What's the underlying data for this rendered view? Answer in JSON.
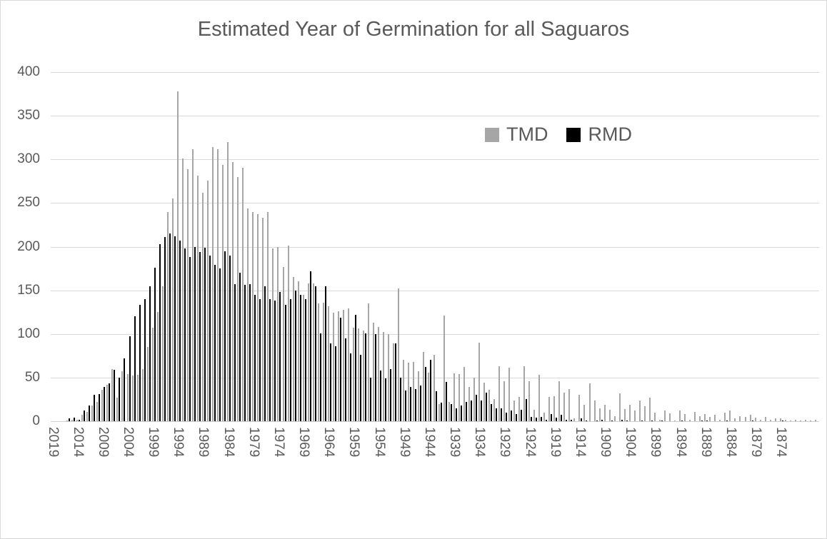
{
  "window": {
    "background": "#ffffff",
    "border_color": "#d9d9d9"
  },
  "chart_data": {
    "type": "bar",
    "title": "Estimated Year of Germination for all Saguaros",
    "title_color": "#595959",
    "axis_label_color": "#595959",
    "gridline_color": "#d9d9d9",
    "grid": "horizontal",
    "legend_position": "inside-top-right",
    "ylim": [
      0,
      400
    ],
    "yticks": [
      0,
      50,
      100,
      150,
      200,
      250,
      300,
      350,
      400
    ],
    "x_tick_interval": 5,
    "x_tick_labels": [
      "2019",
      "2014",
      "2009",
      "2004",
      "1999",
      "1994",
      "1989",
      "1984",
      "1979",
      "1974",
      "1969",
      "1964",
      "1959",
      "1954",
      "1949",
      "1944",
      "1939",
      "1934",
      "1929",
      "1924",
      "1919",
      "1914",
      "1909",
      "1904",
      "1899",
      "1894",
      "1889",
      "1884",
      "1879",
      "1874"
    ],
    "categories": [
      2019,
      2018,
      2017,
      2016,
      2015,
      2014,
      2013,
      2012,
      2011,
      2010,
      2009,
      2008,
      2007,
      2006,
      2005,
      2004,
      2003,
      2002,
      2001,
      2000,
      1999,
      1998,
      1997,
      1996,
      1995,
      1994,
      1993,
      1992,
      1991,
      1990,
      1989,
      1988,
      1987,
      1986,
      1985,
      1984,
      1983,
      1982,
      1981,
      1980,
      1979,
      1978,
      1977,
      1976,
      1975,
      1974,
      1973,
      1972,
      1971,
      1970,
      1969,
      1968,
      1967,
      1966,
      1965,
      1964,
      1963,
      1962,
      1961,
      1960,
      1959,
      1958,
      1957,
      1956,
      1955,
      1954,
      1953,
      1952,
      1951,
      1950,
      1949,
      1948,
      1947,
      1946,
      1945,
      1944,
      1943,
      1942,
      1941,
      1940,
      1939,
      1938,
      1937,
      1936,
      1935,
      1934,
      1933,
      1932,
      1931,
      1930,
      1929,
      1928,
      1927,
      1926,
      1925,
      1924,
      1923,
      1922,
      1921,
      1920,
      1919,
      1918,
      1917,
      1916,
      1915,
      1914,
      1913,
      1912,
      1911,
      1910,
      1909,
      1908,
      1907,
      1906,
      1905,
      1904,
      1903,
      1902,
      1901,
      1900,
      1899,
      1898,
      1897,
      1896,
      1895,
      1894,
      1893,
      1892,
      1891,
      1890,
      1889,
      1888,
      1887,
      1886,
      1885,
      1884,
      1883,
      1882,
      1881,
      1880,
      1879,
      1878,
      1877,
      1876,
      1875,
      1874,
      1873,
      1872,
      1871,
      1870,
      1869,
      1868,
      1867
    ],
    "series": [
      {
        "name": "TMD",
        "color": "#a6a6a6",
        "values": [
          0,
          0,
          0,
          1,
          2,
          2,
          7,
          11,
          18,
          22,
          36,
          42,
          60,
          27,
          57,
          54,
          52,
          53,
          60,
          85,
          107,
          125,
          155,
          240,
          255,
          378,
          301,
          289,
          312,
          281,
          262,
          276,
          314,
          312,
          294,
          320,
          297,
          280,
          290,
          244,
          240,
          237,
          233,
          240,
          198,
          200,
          177,
          201,
          165,
          160,
          145,
          158,
          158,
          135,
          136,
          132,
          124,
          126,
          128,
          129,
          107,
          106,
          104,
          135,
          113,
          108,
          102,
          100,
          89,
          152,
          70,
          67,
          68,
          57,
          79,
          56,
          76,
          20,
          121,
          22,
          55,
          54,
          62,
          39,
          50,
          90,
          44,
          36,
          25,
          63,
          46,
          61,
          24,
          28,
          63,
          46,
          13,
          53,
          10,
          28,
          29,
          46,
          33,
          37,
          3,
          30,
          19,
          43,
          24,
          15,
          19,
          13,
          6,
          32,
          14,
          19,
          12,
          24,
          17,
          27,
          10,
          2,
          12,
          9,
          1,
          12,
          8,
          2,
          11,
          6,
          8,
          5,
          7,
          2,
          10,
          12,
          3,
          6,
          5,
          7,
          4,
          2,
          5,
          2,
          3,
          3,
          2,
          1,
          2,
          1,
          2,
          1,
          2
        ]
      },
      {
        "name": "RMD",
        "color": "#000000",
        "values": [
          0,
          0,
          0,
          3,
          4,
          2,
          12,
          18,
          30,
          31,
          39,
          43,
          59,
          50,
          72,
          97,
          120,
          133,
          140,
          155,
          176,
          203,
          211,
          215,
          212,
          207,
          198,
          188,
          200,
          194,
          199,
          190,
          179,
          175,
          195,
          190,
          157,
          170,
          156,
          157,
          145,
          140,
          155,
          140,
          138,
          148,
          133,
          140,
          150,
          145,
          140,
          172,
          155,
          101,
          155,
          89,
          86,
          119,
          95,
          78,
          122,
          76,
          101,
          50,
          100,
          58,
          49,
          60,
          89,
          50,
          35,
          39,
          37,
          41,
          62,
          70,
          34,
          21,
          45,
          20,
          15,
          18,
          22,
          24,
          30,
          24,
          33,
          20,
          15,
          15,
          10,
          12,
          8,
          13,
          25,
          5,
          4,
          5,
          2,
          8,
          4,
          7,
          2,
          2,
          0,
          3,
          1,
          0,
          1,
          2,
          0,
          1,
          0,
          2,
          1,
          0,
          0,
          1,
          0,
          1,
          0,
          1,
          0,
          0,
          0,
          1,
          0,
          0,
          0,
          1,
          1,
          0,
          0,
          0,
          1,
          0,
          0,
          0,
          0,
          1,
          0,
          0,
          0,
          0,
          0,
          1,
          0,
          0,
          0,
          0,
          0,
          0,
          0
        ]
      }
    ]
  }
}
